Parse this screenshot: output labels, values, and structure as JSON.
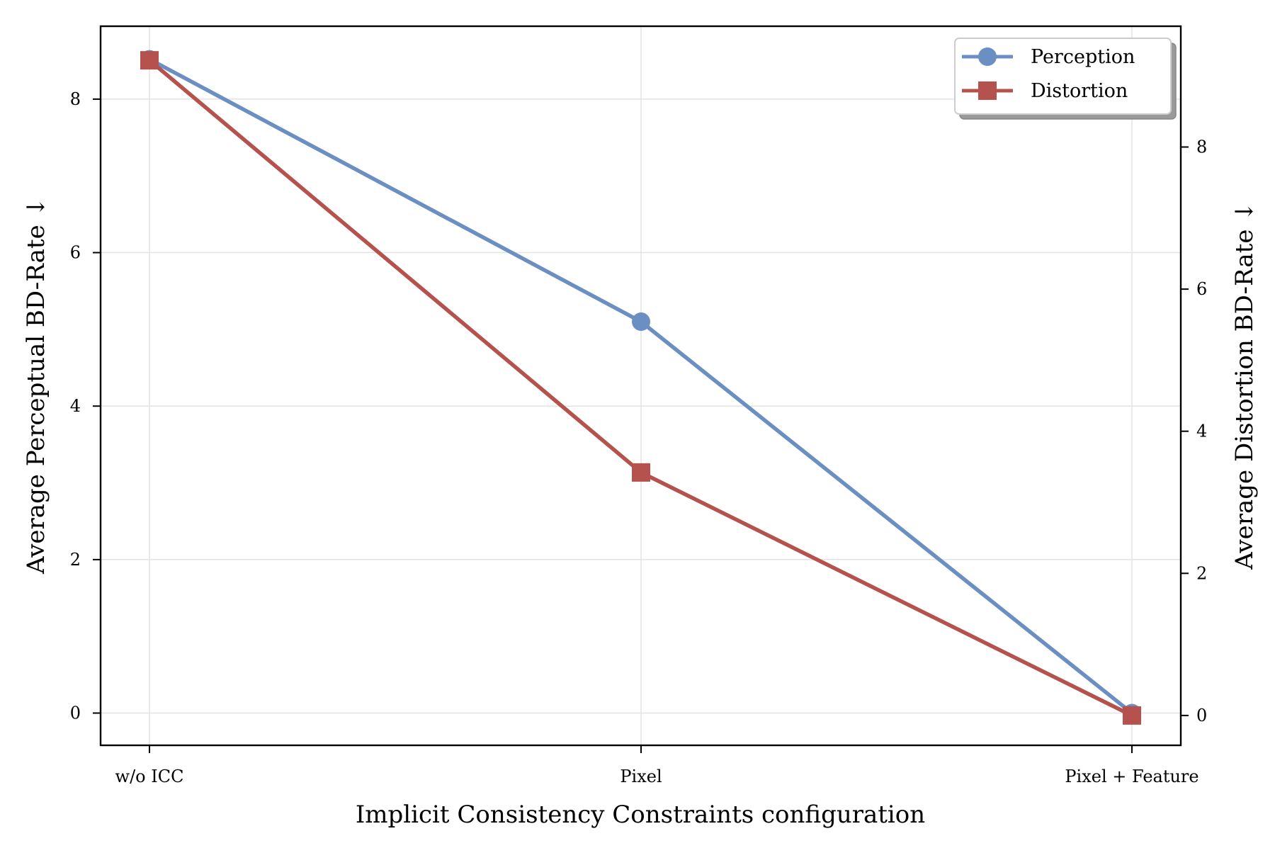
{
  "chart_data": {
    "type": "line",
    "title": "",
    "xlabel": "Implicit Consistency Constraints configuration",
    "ylabel_left": "Average Perceptual BD-Rate ↓",
    "ylabel_right": "Average Distortion BD-Rate ↓",
    "categories": [
      "w/o ICC",
      "Pixel",
      "Pixel + Feature"
    ],
    "ylim_left": [
      -0.42,
      8.95
    ],
    "ylim_right": [
      -0.42,
      9.7
    ],
    "yticks_left": [
      0,
      2,
      4,
      6,
      8
    ],
    "yticks_right": [
      0,
      2,
      4,
      6,
      8
    ],
    "grid": true,
    "legend_position": "top-right",
    "series": [
      {
        "name": "Perception",
        "axis": "left",
        "marker": "circle",
        "color": "#6b8fc2",
        "values": [
          8.52,
          5.1,
          0.0
        ]
      },
      {
        "name": "Distortion",
        "axis": "right",
        "marker": "square",
        "color": "#b5524d",
        "values": [
          9.22,
          3.42,
          0.0
        ]
      }
    ]
  }
}
